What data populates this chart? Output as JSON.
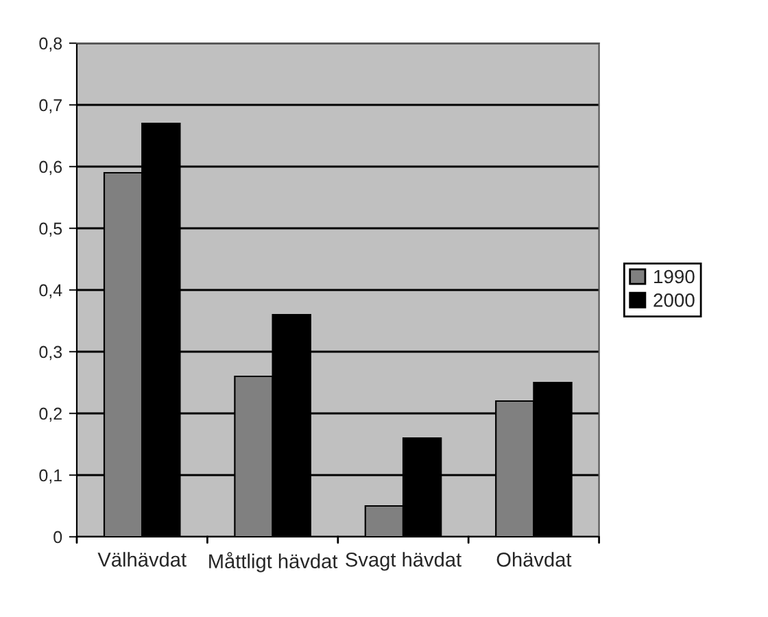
{
  "chart_data": {
    "type": "bar",
    "categories": [
      "Välhävdat",
      "Måttligt hävdat",
      "Svagt hävdat",
      "Ohävdat"
    ],
    "series": [
      {
        "name": "1990",
        "color": "#808080",
        "values": [
          0.59,
          0.26,
          0.05,
          0.22
        ]
      },
      {
        "name": "2000",
        "color": "#000000",
        "values": [
          0.67,
          0.36,
          0.16,
          0.25
        ]
      }
    ],
    "ylim": [
      0,
      0.8
    ],
    "yticks": [
      0,
      {
        "value": 0.1,
        "label": "0,1"
      },
      {
        "value": 0.2,
        "label": "0,2"
      },
      {
        "value": 0.3,
        "label": "0,3"
      },
      {
        "value": 0.4,
        "label": "0,4"
      },
      {
        "value": 0.5,
        "label": "0,5"
      },
      {
        "value": 0.6,
        "label": "0,6"
      },
      {
        "value": 0.7,
        "label": "0,7"
      },
      {
        "value": 0.8,
        "label": "0,8"
      }
    ],
    "grid": "y",
    "legend": "right"
  }
}
